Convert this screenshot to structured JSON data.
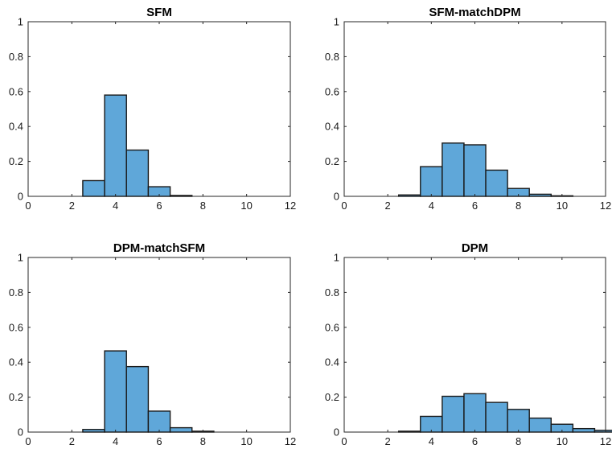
{
  "colors": {
    "bar_fill": "#5fa7d9",
    "bar_edge": "#1a1a1a",
    "axes": "#262626"
  },
  "chart_data": [
    {
      "type": "bar",
      "title": "SFM",
      "xlim": [
        0,
        12
      ],
      "ylim": [
        0,
        1
      ],
      "xticks": [
        "0",
        "2",
        "4",
        "6",
        "8",
        "10",
        "12"
      ],
      "yticks": [
        "0",
        "0.2",
        "0.4",
        "0.6",
        "0.8",
        "1"
      ],
      "bin_width": 1,
      "bins": [
        {
          "start": 2.5,
          "value": 0.09
        },
        {
          "start": 3.5,
          "value": 0.58
        },
        {
          "start": 4.5,
          "value": 0.265
        },
        {
          "start": 5.5,
          "value": 0.055
        },
        {
          "start": 6.5,
          "value": 0.005
        }
      ],
      "grid": false
    },
    {
      "type": "bar",
      "title": "SFM-matchDPM",
      "xlim": [
        0,
        12
      ],
      "ylim": [
        0,
        1
      ],
      "xticks": [
        "0",
        "2",
        "4",
        "6",
        "8",
        "10",
        "12"
      ],
      "yticks": [
        "0",
        "0.2",
        "0.4",
        "0.6",
        "0.8",
        "1"
      ],
      "bin_width": 1,
      "bins": [
        {
          "start": 2.5,
          "value": 0.008
        },
        {
          "start": 3.5,
          "value": 0.17
        },
        {
          "start": 4.5,
          "value": 0.305
        },
        {
          "start": 5.5,
          "value": 0.295
        },
        {
          "start": 6.5,
          "value": 0.15
        },
        {
          "start": 7.5,
          "value": 0.045
        },
        {
          "start": 8.5,
          "value": 0.012
        },
        {
          "start": 9.5,
          "value": 0.003
        }
      ],
      "grid": false
    },
    {
      "type": "bar",
      "title": "DPM-matchSFM",
      "xlim": [
        0,
        12
      ],
      "ylim": [
        0,
        1
      ],
      "xticks": [
        "0",
        "2",
        "4",
        "6",
        "8",
        "10",
        "12"
      ],
      "yticks": [
        "0",
        "0.2",
        "0.4",
        "0.6",
        "0.8",
        "1"
      ],
      "bin_width": 1,
      "bins": [
        {
          "start": 2.5,
          "value": 0.015
        },
        {
          "start": 3.5,
          "value": 0.465
        },
        {
          "start": 4.5,
          "value": 0.375
        },
        {
          "start": 5.5,
          "value": 0.12
        },
        {
          "start": 6.5,
          "value": 0.025
        },
        {
          "start": 7.5,
          "value": 0.005
        }
      ],
      "grid": false
    },
    {
      "type": "bar",
      "title": "DPM",
      "xlim": [
        0,
        12
      ],
      "ylim": [
        0,
        1
      ],
      "xticks": [
        "0",
        "2",
        "4",
        "6",
        "8",
        "10",
        "12"
      ],
      "yticks": [
        "0",
        "0.2",
        "0.4",
        "0.6",
        "0.8",
        "1"
      ],
      "bin_width": 1,
      "bins": [
        {
          "start": 2.5,
          "value": 0.005
        },
        {
          "start": 3.5,
          "value": 0.09
        },
        {
          "start": 4.5,
          "value": 0.205
        },
        {
          "start": 5.5,
          "value": 0.22
        },
        {
          "start": 6.5,
          "value": 0.17
        },
        {
          "start": 7.5,
          "value": 0.13
        },
        {
          "start": 8.5,
          "value": 0.08
        },
        {
          "start": 9.5,
          "value": 0.045
        },
        {
          "start": 10.5,
          "value": 0.02
        },
        {
          "start": 11.5,
          "value": 0.01
        }
      ],
      "grid": false
    }
  ]
}
